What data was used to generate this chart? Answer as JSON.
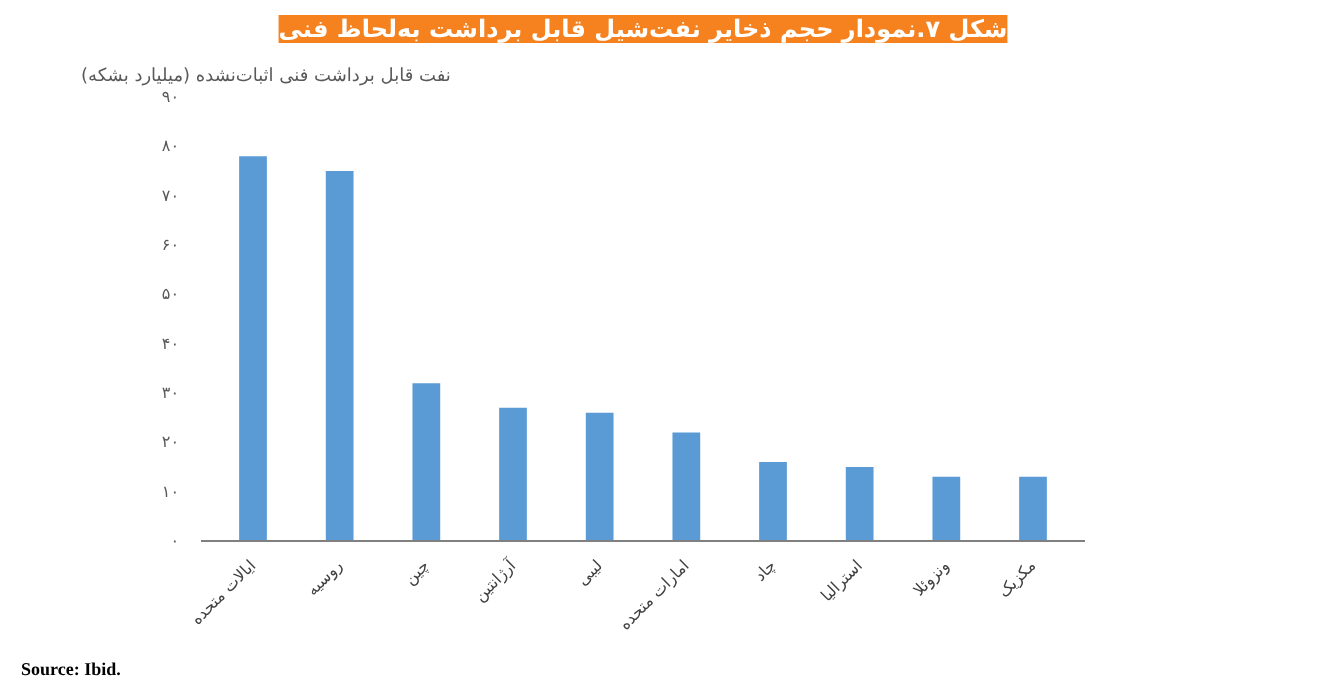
{
  "chart_data": {
    "type": "bar",
    "title": "شکل ۷.نمودار حجم ذخایر نفت‌شیل قابل برداشت به‌لحاظ فنی",
    "ylabel": "نفت قابل برداشت فنی اثبات‌نشده (میلیارد بشکه)",
    "categories": [
      "ایالات متحده",
      "روسیه",
      "چین",
      "آرژانتین",
      "لیبی",
      "امارات متحده",
      "چاد",
      "استرالیا",
      "ونزوئلا",
      "مکزیک"
    ],
    "values": [
      78,
      75,
      32,
      27,
      26,
      22,
      16,
      15,
      13,
      13
    ],
    "color": "#5b9bd5",
    "ylim": [
      0,
      90
    ],
    "yticks": [
      {
        "value": 0,
        "label": "۰"
      },
      {
        "value": 10,
        "label": "۱۰"
      },
      {
        "value": 20,
        "label": "۲۰"
      },
      {
        "value": 30,
        "label": "۳۰"
      },
      {
        "value": 40,
        "label": "۴۰"
      },
      {
        "value": 50,
        "label": "۵۰"
      },
      {
        "value": 60,
        "label": "۶۰"
      },
      {
        "value": 70,
        "label": "۷۰"
      },
      {
        "value": 80,
        "label": "۸۰"
      },
      {
        "value": 90,
        "label": "۹۰"
      }
    ],
    "grid": false,
    "annotations": [
      "Source: Ibid."
    ]
  }
}
